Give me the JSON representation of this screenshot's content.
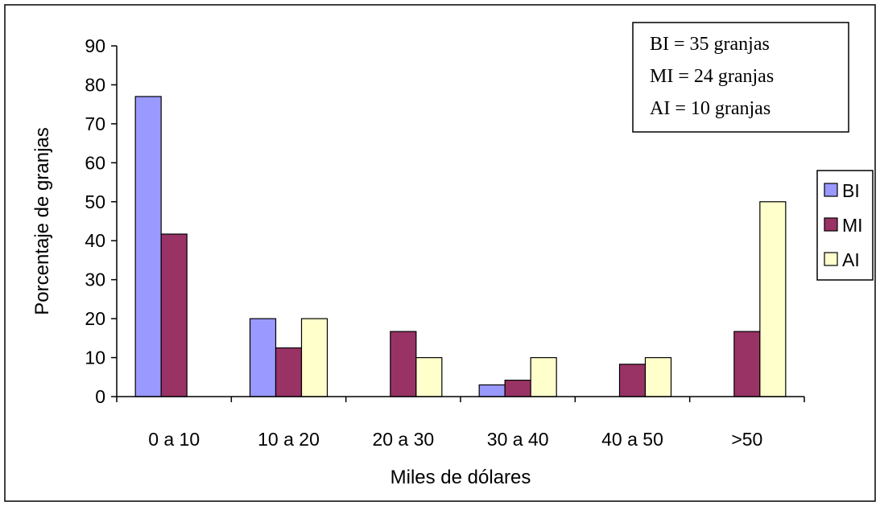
{
  "chart_data": {
    "type": "bar",
    "categories": [
      "0 a 10",
      "10 a 20",
      "20 a 30",
      "30 a 40",
      "40 a 50",
      ">50"
    ],
    "series": [
      {
        "name": "BI",
        "values": [
          77,
          20,
          0,
          3,
          0,
          0
        ],
        "color": "#9999ff"
      },
      {
        "name": "MI",
        "values": [
          41.7,
          12.5,
          16.7,
          4.2,
          8.3,
          16.7
        ],
        "color": "#993366"
      },
      {
        "name": "AI",
        "values": [
          0,
          20,
          10,
          10,
          10,
          50
        ],
        "color": "#ffffcc"
      }
    ],
    "xlabel": "Miles de dólares",
    "ylabel": "Porcentaje de granjas",
    "ylim": [
      0,
      90
    ],
    "yticks": [
      0,
      10,
      20,
      30,
      40,
      50,
      60,
      70,
      80,
      90
    ],
    "grid": false,
    "legend_position": "right",
    "annotation_lines": [
      "BI = 35 granjas",
      "MI = 24 granjas",
      "AI = 10 granjas"
    ]
  }
}
